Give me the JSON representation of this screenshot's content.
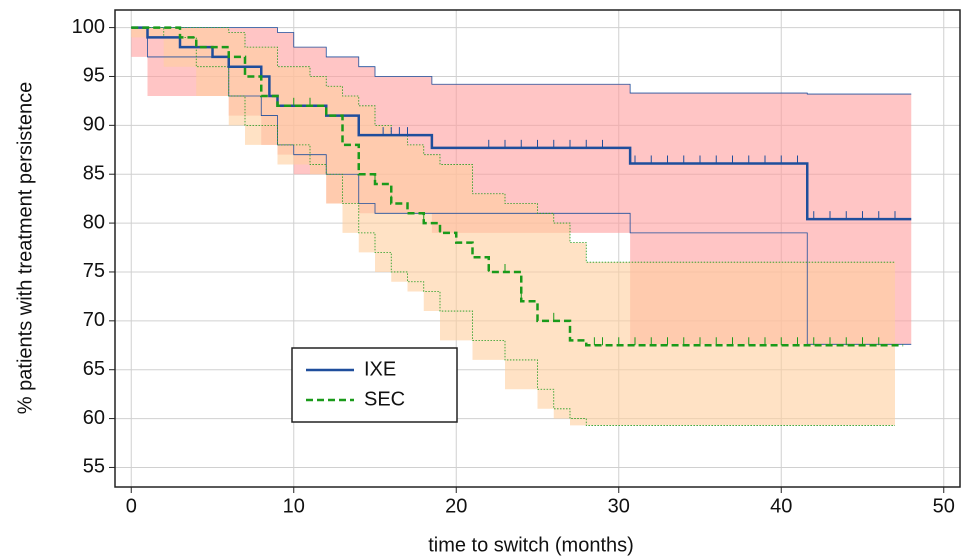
{
  "chart_data": {
    "type": "step",
    "x_label": "time to switch (months)",
    "y_label": "% patients with treatment persistence",
    "xlim": [
      -1,
      51
    ],
    "ylim": [
      53,
      101.8
    ],
    "xticks": [
      0,
      10,
      20,
      30,
      40,
      50
    ],
    "yticks": [
      55,
      60,
      65,
      70,
      75,
      80,
      85,
      90,
      95,
      100
    ],
    "grid": true,
    "legend": "lower-left",
    "series": [
      {
        "name": "IXE",
        "color": "#1f4e9c",
        "dash": false,
        "x": [
          0,
          1,
          3,
          5,
          6,
          8,
          8.5,
          9,
          12,
          14,
          18.5,
          30.7,
          41.6,
          48
        ],
        "values": [
          100,
          99,
          98,
          97,
          96,
          95,
          93,
          92,
          91,
          89,
          87.7,
          86.1,
          80.4,
          80.4
        ],
        "ci_color": "#ff9e9e",
        "ci_x": [
          0,
          1,
          6,
          8,
          9,
          10,
          12,
          14,
          15,
          18.5,
          30.7,
          41.6,
          48
        ],
        "ci_upper": [
          100,
          100,
          100,
          100,
          99.5,
          98,
          97,
          96,
          95,
          94.2,
          93.3,
          93.2,
          93.2
        ],
        "ci_lower": [
          100,
          97,
          93,
          91,
          88,
          87,
          85,
          82,
          81,
          81,
          79,
          67.6,
          67.6
        ],
        "censor": [
          15.5,
          16,
          16.5,
          17,
          22,
          23,
          24,
          25,
          26,
          27,
          28,
          29,
          31,
          32,
          33,
          34,
          35,
          36,
          37,
          38,
          39,
          40,
          41,
          42,
          43,
          44,
          45,
          46,
          47
        ]
      },
      {
        "name": "SEC",
        "color": "#1a9a1a",
        "dash": true,
        "x": [
          0,
          3,
          4,
          6,
          7,
          8,
          9,
          12,
          13,
          14,
          15,
          16,
          17,
          18,
          19,
          20,
          21,
          22,
          24,
          25,
          27,
          28,
          47.5
        ],
        "values": [
          100,
          99,
          98,
          97,
          95,
          93,
          92,
          91,
          88,
          85,
          84,
          82,
          81,
          80,
          79,
          78,
          76.5,
          75,
          72,
          70,
          68,
          67.5,
          67.5
        ],
        "ci_color": "#ffcf9e",
        "ci_x": [
          0,
          2,
          4,
          6,
          7,
          9,
          11,
          12,
          13,
          14,
          15,
          16,
          17,
          18,
          19,
          21,
          23,
          25,
          26,
          27,
          28,
          47
        ],
        "ci_upper": [
          100,
          100,
          100,
          99.5,
          98,
          96,
          95,
          94,
          93,
          92,
          90,
          89,
          88,
          87,
          86,
          83,
          82,
          81,
          80,
          78,
          76,
          76
        ],
        "ci_lower": [
          100,
          99,
          96,
          93,
          90,
          88,
          86,
          85,
          82,
          79,
          77,
          75,
          74,
          73,
          71,
          68,
          66,
          63,
          61,
          60,
          59.3,
          59.3
        ],
        "censor": [
          10,
          11,
          12,
          15,
          16,
          18,
          19,
          22,
          23,
          24,
          26,
          28.5,
          29,
          30,
          31,
          32,
          33,
          34,
          35,
          36,
          37,
          38,
          39,
          40,
          41,
          42,
          43,
          44,
          45,
          46
        ]
      }
    ]
  }
}
